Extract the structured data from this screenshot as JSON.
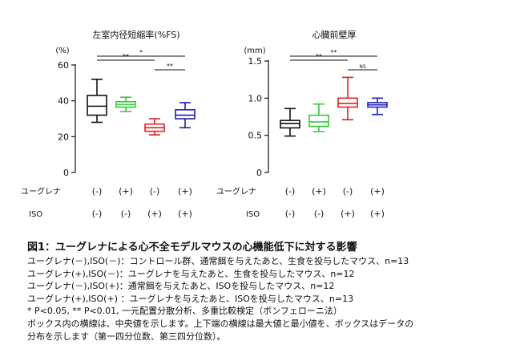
{
  "chart_data": [
    {
      "type": "box",
      "title": "左室内径短縮率(%FS)",
      "unit_label": "(%)",
      "ylim": [
        0,
        60
      ],
      "yticks": [
        0,
        20,
        40,
        60
      ],
      "ytick_labels": [
        "0",
        "20",
        "40",
        "60"
      ],
      "groups": [
        {
          "euglena": "(-)",
          "iso": "(-)",
          "color": "#111111",
          "min": 28,
          "q1": 32,
          "median": 37,
          "q3": 43,
          "max": 52
        },
        {
          "euglena": "(+)",
          "iso": "(-)",
          "color": "#33cc33",
          "min": 34,
          "q1": 36.5,
          "median": 38,
          "q3": 39.5,
          "max": 42
        },
        {
          "euglena": "(-)",
          "iso": "(+)",
          "color": "#dd2222",
          "min": 21,
          "q1": 23,
          "median": 25,
          "q3": 27,
          "max": 30
        },
        {
          "euglena": "(+)",
          "iso": "(+)",
          "color": "#2222aa",
          "min": 25,
          "q1": 30,
          "median": 32,
          "q3": 35,
          "max": 39
        }
      ],
      "significance": [
        {
          "from": 0,
          "to": 3,
          "label": "*"
        },
        {
          "from": 0,
          "to": 2,
          "label": "**"
        },
        {
          "from": 2,
          "to": 3,
          "label": "**"
        }
      ]
    },
    {
      "type": "box",
      "title": "心臓前壁厚",
      "unit_label": "(mm)",
      "ylim": [
        0,
        1.5
      ],
      "yticks": [
        0,
        0.5,
        1.0,
        1.5
      ],
      "ytick_labels": [
        "0",
        "0.5",
        "1.0",
        "1.5"
      ],
      "groups": [
        {
          "euglena": "(-)",
          "iso": "(-)",
          "color": "#111111",
          "min": 0.49,
          "q1": 0.6,
          "median": 0.66,
          "q3": 0.7,
          "max": 0.86
        },
        {
          "euglena": "(+)",
          "iso": "(-)",
          "color": "#33cc33",
          "min": 0.55,
          "q1": 0.62,
          "median": 0.68,
          "q3": 0.77,
          "max": 0.92
        },
        {
          "euglena": "(-)",
          "iso": "(+)",
          "color": "#dd2222",
          "min": 0.71,
          "q1": 0.88,
          "median": 0.93,
          "q3": 1.0,
          "max": 1.28
        },
        {
          "euglena": "(+)",
          "iso": "(+)",
          "color": "#2222aa",
          "min": 0.78,
          "q1": 0.88,
          "median": 0.91,
          "q3": 0.94,
          "max": 1.0
        }
      ],
      "significance": [
        {
          "from": 0,
          "to": 3,
          "label": "**"
        },
        {
          "from": 0,
          "to": 2,
          "label": "**"
        },
        {
          "from": 2,
          "to": 3,
          "label": "NS"
        }
      ]
    }
  ],
  "row_labels": {
    "euglena": "ユーグレナ",
    "iso": "ISO"
  },
  "caption": {
    "title": "図1：ユーグレナによる心不全モデルマウスの心機能低下に対する影響",
    "lines": [
      "ユーグレナ(－),ISO(－)：コントロール群、通常餌を与えたあと、生食を投与したマウス、n=13",
      "ユーグレナ(+),ISO(－)：ユーグレナを与えたあと、生食を投与したマウス、n=12",
      "ユーグレナ(－),ISO(+)：通常餌を与えたあと、ISOを投与したマウス、n=12",
      "ユーグレナ(+),ISO(+) ：ユーグレナを与えたあと、ISOを投与したマウス、n=13",
      "* P<0.05, ** P<0.01, 一元配置分散分析、多重比較検定（ボンフェローニ法）",
      "ボックス内の横線は、中央値を示します。上下端の横線は最大値と最小値を、ボックスはデータの",
      "分布を示します（第一四分位数、第三四分位数）。"
    ]
  }
}
